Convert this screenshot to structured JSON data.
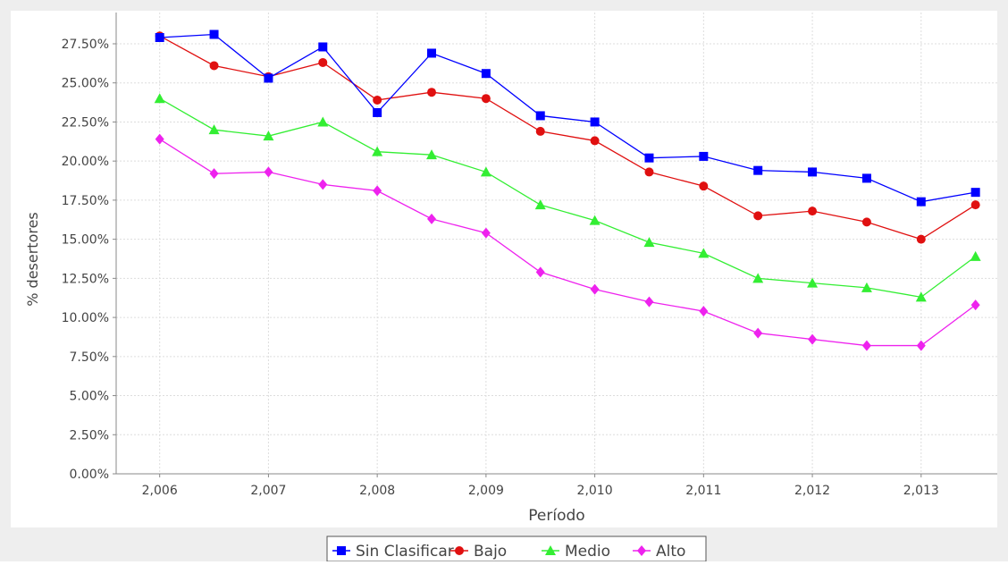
{
  "chart_data": {
    "type": "line",
    "title": "",
    "xlabel": "Período",
    "ylabel": "% desertores",
    "x": [
      2006,
      2006.5,
      2007,
      2007.5,
      2008,
      2008.5,
      2009,
      2009.5,
      2010,
      2010.5,
      2011,
      2011.5,
      2012,
      2012.5,
      2013,
      2013.5
    ],
    "x_ticks": [
      "2,006",
      "2,007",
      "2,008",
      "2,009",
      "2,010",
      "2,011",
      "2,012",
      "2,013"
    ],
    "x_tick_values": [
      2006,
      2007,
      2008,
      2009,
      2010,
      2011,
      2012,
      2013
    ],
    "xlim": [
      2005.6,
      2013.7
    ],
    "y_ticks": [
      "0.00%",
      "2.50%",
      "5.00%",
      "7.50%",
      "10.00%",
      "12.50%",
      "15.00%",
      "17.50%",
      "20.00%",
      "22.50%",
      "25.00%",
      "27.50%"
    ],
    "y_tick_values": [
      0,
      2.5,
      5,
      7.5,
      10,
      12.5,
      15,
      17.5,
      20,
      22.5,
      25,
      27.5
    ],
    "ylim": [
      0,
      29.5
    ],
    "grid": true,
    "legend_position": "bottom",
    "series": [
      {
        "name": "Sin Clasificar",
        "color": "#0000ff",
        "marker": "square",
        "values": [
          27.9,
          28.1,
          25.3,
          27.3,
          23.1,
          26.9,
          25.6,
          22.9,
          22.5,
          20.2,
          20.3,
          19.4,
          19.3,
          18.9,
          17.4,
          18.0
        ]
      },
      {
        "name": "Bajo",
        "color": "#e01010",
        "marker": "circle",
        "values": [
          28.0,
          26.1,
          25.4,
          26.3,
          23.9,
          24.4,
          24.0,
          21.9,
          21.3,
          19.3,
          18.4,
          16.5,
          16.8,
          16.1,
          15.0,
          17.2
        ]
      },
      {
        "name": "Medio",
        "color": "#33ee33",
        "marker": "triangle",
        "values": [
          24.0,
          22.0,
          21.6,
          22.5,
          20.6,
          20.4,
          19.3,
          17.2,
          16.2,
          14.8,
          14.1,
          12.5,
          12.2,
          11.9,
          11.3,
          13.9
        ]
      },
      {
        "name": "Alto",
        "color": "#ee22ee",
        "marker": "diamond",
        "values": [
          21.4,
          19.2,
          19.3,
          18.5,
          18.1,
          16.3,
          15.4,
          12.9,
          11.8,
          11.0,
          10.4,
          9.0,
          8.6,
          8.2,
          8.2,
          10.8
        ]
      }
    ]
  }
}
